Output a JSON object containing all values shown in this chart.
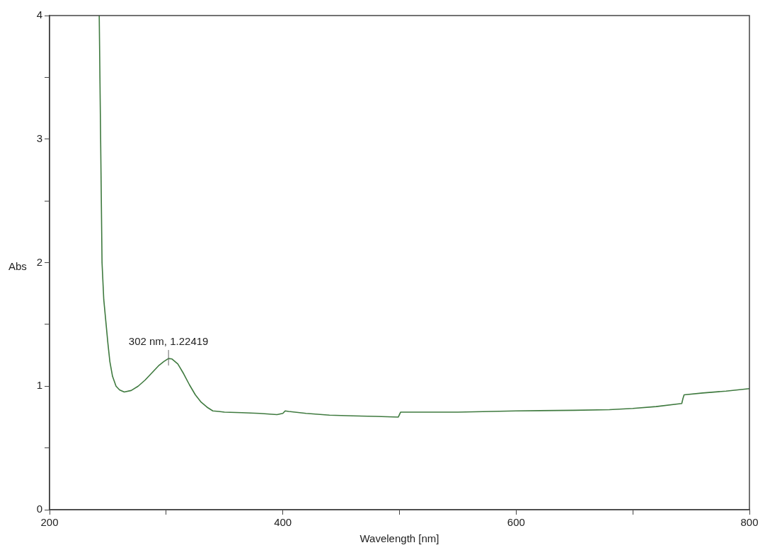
{
  "chart_data": {
    "type": "line",
    "xlabel": "Wavelength [nm]",
    "ylabel": "Abs",
    "xlim": [
      200,
      800
    ],
    "ylim": [
      0,
      4
    ],
    "xticks": [
      200,
      {
        "value": 300,
        "label": null
      },
      400,
      {
        "value": 500,
        "label": null
      },
      600,
      {
        "value": 700,
        "label": null
      },
      800
    ],
    "yticks": [
      0,
      {
        "value": 0.5,
        "label": null
      },
      1,
      {
        "value": 1.5,
        "label": null
      },
      2,
      {
        "value": 2.5,
        "label": null
      },
      3,
      {
        "value": 3.5,
        "label": null
      },
      4
    ],
    "grid": false,
    "legend": false,
    "marker": "none",
    "line_style": "solid",
    "series": [
      {
        "color": "#3f7a3f",
        "x": [
          242.6,
          243.8,
          245,
          246.5,
          248.5,
          250,
          251.7,
          254,
          257,
          260,
          264,
          270,
          276,
          282,
          288,
          294,
          298,
          302,
          305,
          310,
          315,
          320,
          325,
          330,
          335,
          340,
          345,
          350,
          365,
          380,
          395,
          400,
          402,
          405,
          420,
          440,
          460,
          480,
          499,
          500,
          501,
          520,
          550,
          600,
          650,
          680,
          700,
          720,
          742,
          743,
          744,
          760,
          780,
          800
        ],
        "values": [
          4,
          3,
          2,
          1.7,
          1.5,
          1.35,
          1.2,
          1.08,
          1.0,
          0.97,
          0.953,
          0.965,
          1.0,
          1.05,
          1.11,
          1.17,
          1.2,
          1.224,
          1.22,
          1.18,
          1.1,
          1.01,
          0.93,
          0.87,
          0.83,
          0.8,
          0.795,
          0.79,
          0.785,
          0.78,
          0.77,
          0.78,
          0.8,
          0.795,
          0.78,
          0.765,
          0.76,
          0.755,
          0.75,
          0.77,
          0.79,
          0.79,
          0.79,
          0.8,
          0.805,
          0.81,
          0.82,
          0.835,
          0.86,
          0.9,
          0.93,
          0.945,
          0.96,
          0.98
        ]
      }
    ],
    "annotations": [
      {
        "text": "302 nm, 1.22419",
        "x": 302,
        "y": 1.22419
      }
    ]
  }
}
